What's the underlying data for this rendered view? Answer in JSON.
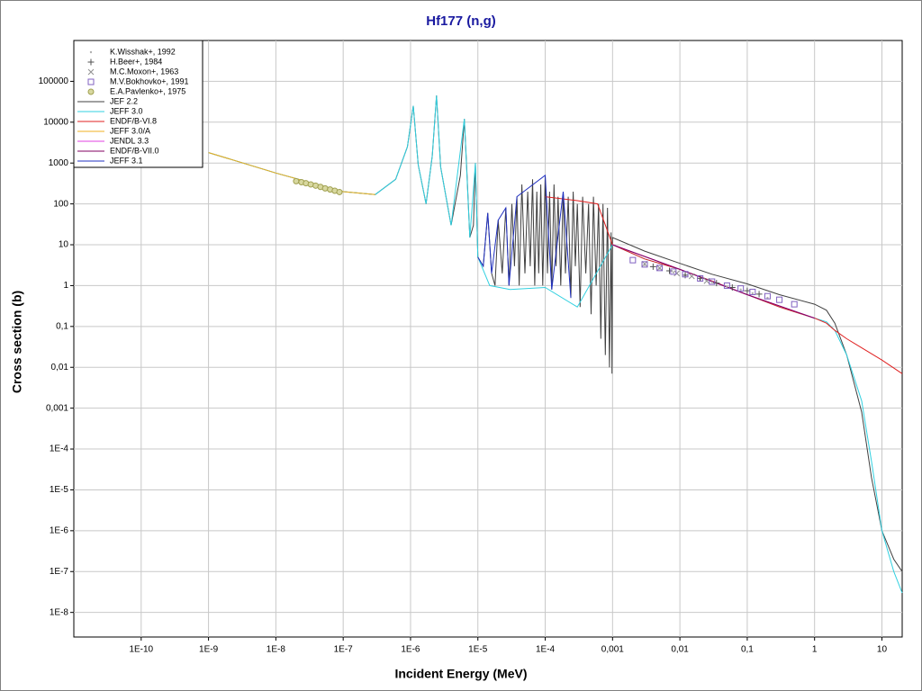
{
  "chart_data": {
    "type": "line",
    "title": "Hf177 (n,g)",
    "x_label": "Incident Energy (MeV)",
    "y_label": "Cross section (b)",
    "log_x": true,
    "log_y": true,
    "grid": true,
    "legend": "top-left",
    "xlim": [
      1e-11,
      20
    ],
    "ylim": [
      2.5e-09,
      1000000
    ],
    "xticks": [
      {
        "value": 1e-10,
        "label": "1E-10"
      },
      {
        "value": 1e-09,
        "label": "1E-9"
      },
      {
        "value": 1e-08,
        "label": "1E-8"
      },
      {
        "value": 1e-07,
        "label": "1E-7"
      },
      {
        "value": 1e-06,
        "label": "1E-6"
      },
      {
        "value": 1e-05,
        "label": "1E-5"
      },
      {
        "value": 0.0001,
        "label": "1E-4"
      },
      {
        "value": 0.001,
        "label": "0,001"
      },
      {
        "value": 0.01,
        "label": "0,01"
      },
      {
        "value": 0.1,
        "label": "0,1"
      },
      1,
      10
    ],
    "yticks": [
      100000,
      10000,
      1000,
      100,
      10,
      1,
      {
        "value": 0.1,
        "label": "0,1"
      },
      {
        "value": 0.01,
        "label": "0,01"
      },
      {
        "value": 0.001,
        "label": "0,001"
      },
      {
        "value": 0.0001,
        "label": "1E-4"
      },
      {
        "value": 1e-05,
        "label": "1E-5"
      },
      {
        "value": 1e-06,
        "label": "1E-6"
      },
      {
        "value": 1e-07,
        "label": "1E-7"
      },
      {
        "value": 1e-08,
        "label": "1E-8"
      }
    ],
    "series": [
      {
        "name": "K.Wisshak+, 1992",
        "color": "#b0b0b0",
        "marker": "dot",
        "x": [
          0.003,
          0.005,
          0.008,
          0.012,
          0.02,
          0.03,
          0.05,
          0.08,
          0.12,
          0.2
        ],
        "values": [
          3.2,
          2.6,
          2.1,
          1.8,
          1.4,
          1.2,
          0.95,
          0.8,
          0.65,
          0.5
        ]
      },
      {
        "name": "H.Beer+, 1984",
        "color": "#505050",
        "marker": "plus",
        "x": [
          0.004,
          0.007,
          0.012,
          0.02,
          0.035,
          0.06,
          0.1,
          0.15
        ],
        "values": [
          2.9,
          2.3,
          1.8,
          1.5,
          1.15,
          0.9,
          0.75,
          0.62
        ]
      },
      {
        "name": "M.C.Moxon+, 1963",
        "color": "#909090",
        "marker": "x",
        "x": [
          0.003,
          0.005,
          0.009,
          0.015,
          0.025
        ],
        "values": [
          3.4,
          2.7,
          2.0,
          1.7,
          1.3
        ]
      },
      {
        "name": "M.V.Bokhovko+, 1991",
        "color": "#8060c0",
        "marker": "square",
        "x": [
          0.002,
          0.003,
          0.005,
          0.008,
          0.012,
          0.02,
          0.03,
          0.05,
          0.08,
          0.12,
          0.2,
          0.3,
          0.5
        ],
        "values": [
          4.2,
          3.3,
          2.7,
          2.2,
          1.9,
          1.5,
          1.25,
          1.0,
          0.85,
          0.7,
          0.55,
          0.45,
          0.35
        ]
      },
      {
        "name": "E.A.Pavlenko+, 1975",
        "color": "#a0a050",
        "marker": "circle",
        "x": [
          2e-08,
          2.4e-08,
          2.8e-08,
          3.3e-08,
          3.9e-08,
          4.6e-08,
          5.4e-08,
          6.4e-08,
          7.5e-08,
          8.8e-08
        ],
        "values": [
          360,
          340,
          320,
          300,
          280,
          260,
          240,
          225,
          210,
          195
        ]
      },
      {
        "name": "JEF 2.2",
        "color": "#404040",
        "x": [
          1e-09,
          1e-08,
          1e-07,
          3e-07,
          6e-07,
          9e-07,
          1.1e-06,
          1.3e-06,
          1.7e-06,
          2.1e-06,
          2.43e-06,
          2.8e-06,
          4e-06,
          5.5e-06,
          6.3e-06,
          6.8e-06,
          7.6e-06,
          8.6e-06,
          9.2e-06,
          1e-05,
          1.2e-05,
          1.4e-05,
          1.6e-05,
          1.8e-05,
          2e-05,
          2.3e-05,
          2.6e-05,
          2.9e-05,
          3.2e-05,
          3.5e-05,
          3.8e-05,
          4.1e-05,
          4.5e-05,
          5e-05,
          5.5e-05,
          6e-05,
          6.5e-05,
          7e-05,
          7.5e-05,
          8e-05,
          8.6e-05,
          9.2e-05,
          0.0001,
          0.000108,
          0.000116,
          0.000125,
          0.000135,
          0.000145,
          0.000155,
          0.00017,
          0.000185,
          0.0002,
          0.00022,
          0.00024,
          0.00026,
          0.00028,
          0.0003,
          0.00033,
          0.00036,
          0.0004,
          0.00044,
          0.00048,
          0.00052,
          0.00057,
          0.00062,
          0.00067,
          0.00072,
          0.00078,
          0.00084,
          0.0009,
          0.00095,
          0.00098,
          0.001,
          0.003,
          0.01,
          0.03,
          0.1,
          0.3,
          1,
          1.5,
          2,
          3,
          5,
          7,
          10,
          15,
          20
        ],
        "values": [
          1800,
          570,
          200,
          170,
          400,
          2500,
          25000,
          900,
          100,
          1500,
          45000,
          800,
          30,
          500,
          12000,
          900,
          15,
          30,
          1000,
          5,
          3,
          60,
          2,
          1,
          40,
          2,
          80,
          1,
          100,
          3,
          150,
          1,
          300,
          2,
          200,
          3,
          400,
          1,
          200,
          2,
          300,
          1,
          500,
          2,
          200,
          0.8,
          300,
          3,
          150,
          1,
          200,
          2,
          150,
          0.5,
          200,
          3,
          100,
          0.3,
          150,
          2,
          100,
          0.2,
          150,
          1,
          100,
          0.05,
          100,
          0.02,
          80,
          0.01,
          20,
          0.007,
          15,
          7,
          3.5,
          1.9,
          1.1,
          0.6,
          0.35,
          0.25,
          0.12,
          0.02,
          0.0008,
          2e-05,
          1e-06,
          2e-07,
          1e-07
        ]
      },
      {
        "name": "JEFF 3.0",
        "color": "#30d0e0",
        "x": [
          1e-09,
          1e-08,
          1e-07,
          3e-07,
          6e-07,
          9e-07,
          1.1e-06,
          1.3e-06,
          1.7e-06,
          2.1e-06,
          2.43e-06,
          2.8e-06,
          4e-06,
          6.3e-06,
          7.6e-06,
          9.2e-06,
          1e-05,
          1.5e-05,
          3e-05,
          0.0001,
          0.0003,
          0.001,
          0.003,
          0.01,
          0.03,
          0.1,
          0.3,
          1,
          1.5,
          2,
          3,
          5,
          7,
          10,
          15,
          20
        ],
        "values": [
          1800,
          570,
          200,
          170,
          400,
          2500,
          25000,
          900,
          100,
          1500,
          45000,
          800,
          30,
          12000,
          15,
          1000,
          5,
          1,
          0.8,
          0.9,
          0.3,
          10,
          4.5,
          2.5,
          1.3,
          0.6,
          0.3,
          0.16,
          0.13,
          0.08,
          0.02,
          0.0015,
          5e-05,
          1e-06,
          1e-07,
          3e-08
        ]
      },
      {
        "name": "ENDF/B-VI.8",
        "color": "#e02020",
        "x": [
          0.0001,
          0.0003,
          0.0006,
          0.001,
          0.003,
          0.01,
          0.03,
          0.1,
          0.3,
          1,
          1.5,
          2,
          3,
          5,
          10,
          20
        ],
        "values": [
          150,
          120,
          100,
          10,
          4.5,
          2.5,
          1.3,
          0.6,
          0.3,
          0.16,
          0.12,
          0.08,
          0.05,
          0.03,
          0.015,
          0.007
        ]
      },
      {
        "name": "JEFF 3.0/A",
        "color": "#f0b020",
        "x": [
          1e-09,
          1e-08,
          1e-07,
          3e-07
        ],
        "values": [
          1800,
          570,
          200,
          170
        ]
      },
      {
        "name": "JENDL 3.3",
        "color": "#e040e0",
        "x": [
          0.001,
          0.01,
          0.1,
          1
        ],
        "values": [
          10,
          2.5,
          0.6,
          0.16
        ]
      },
      {
        "name": "ENDF/B-VII.0",
        "color": "#800060",
        "x": [
          0.001,
          0.01,
          0.1,
          1
        ],
        "values": [
          10,
          2.5,
          0.6,
          0.16
        ]
      },
      {
        "name": "JEFF 3.1",
        "color": "#2030c0",
        "x": [
          1e-05,
          1.2e-05,
          1.4e-05,
          1.6e-05,
          2e-05,
          2.6e-05,
          2.9e-05,
          3.8e-05,
          0.0001,
          0.000125,
          0.000185,
          0.00024
        ],
        "values": [
          5,
          3,
          60,
          2,
          40,
          80,
          1,
          150,
          500,
          0.8,
          200,
          0.5
        ]
      }
    ]
  }
}
